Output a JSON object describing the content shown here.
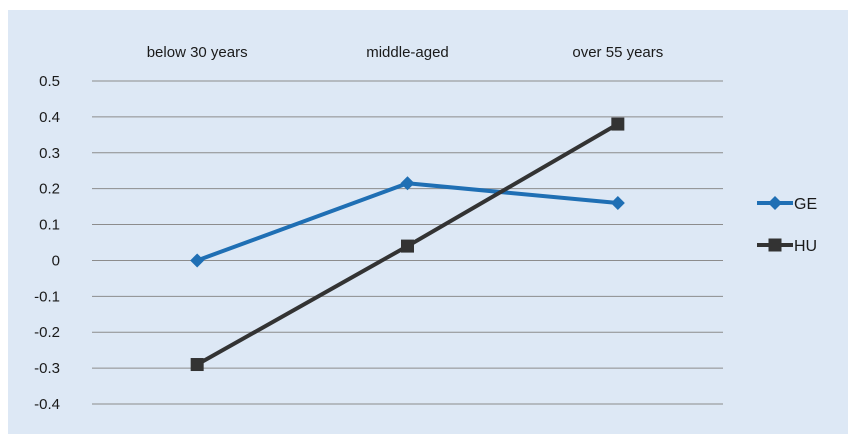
{
  "chart_data": {
    "type": "line",
    "title": "",
    "xlabel": "",
    "ylabel": "",
    "categories": [
      "below 30 years",
      "middle-aged",
      "over 55 years"
    ],
    "yticks": [
      "0.5",
      "0.4",
      "0.3",
      "0.2",
      "0.1",
      "0",
      "-0.1",
      "-0.2",
      "-0.3",
      "-0.4"
    ],
    "ylim": [
      -0.4,
      0.5
    ],
    "ytick_step": 0.1,
    "grid": true,
    "x_axis_position": "top",
    "legend_position": "right",
    "series": [
      {
        "name": "GE",
        "values": [
          0.0,
          0.215,
          0.16
        ],
        "color": "#1f6fb4",
        "marker": "diamond"
      },
      {
        "name": "HU",
        "values": [
          -0.29,
          0.04,
          0.38
        ],
        "color": "#333333",
        "marker": "square"
      }
    ]
  }
}
